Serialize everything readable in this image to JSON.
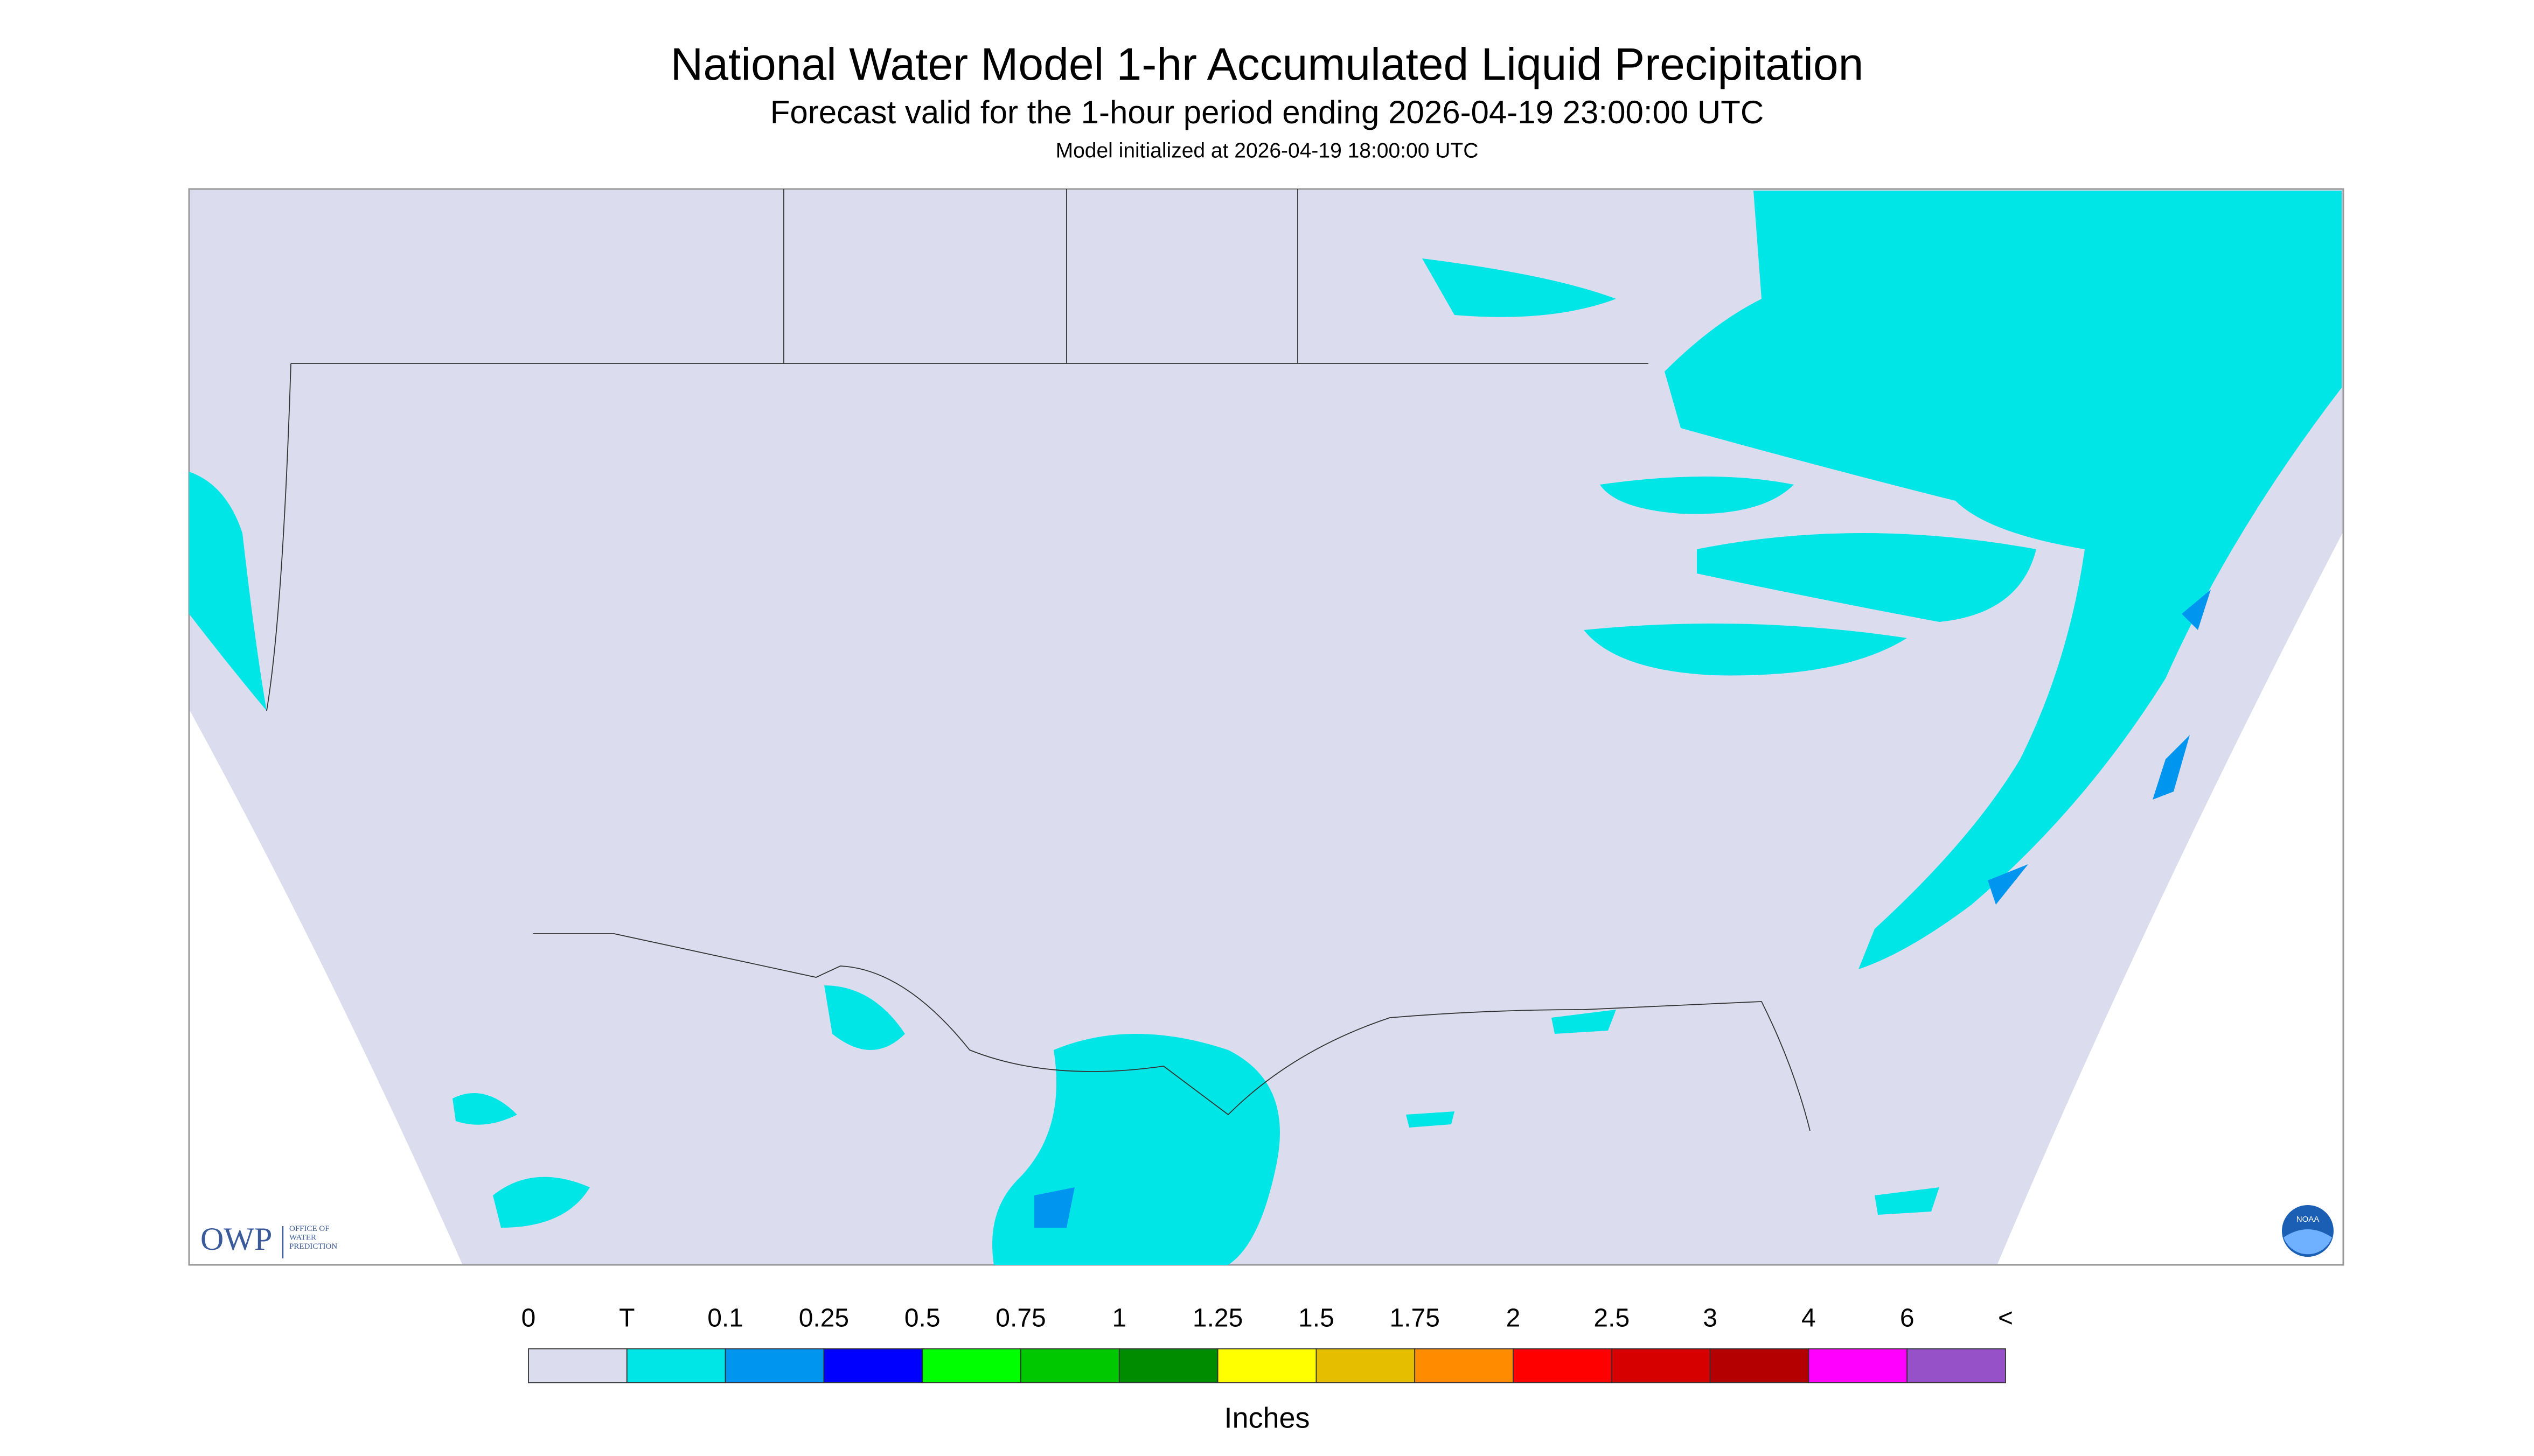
{
  "header": {
    "title": "National Water Model 1-hr Accumulated Liquid Precipitation",
    "subtitle": "Forecast valid for the 1-hour period ending 2026-04-19 23:00:00 UTC",
    "note": "Model initialized at 2026-04-19 18:00:00 UTC"
  },
  "legend": {
    "labels": [
      0,
      "T",
      0.1,
      0.25,
      0.5,
      0.75,
      1,
      1.25,
      1.5,
      1.75,
      2,
      2.5,
      3,
      4,
      6,
      "<"
    ],
    "colors": [
      "#dcdcef",
      "#00e6e6",
      "#0096f0",
      "#0000ff",
      "#00ff00",
      "#00c800",
      "#008c00",
      "#ffff00",
      "#e6be00",
      "#ff8c00",
      "#ff0000",
      "#d70000",
      "#b40000",
      "#ff00ff",
      "#9650c8"
    ],
    "unit": "Inches"
  },
  "logos": {
    "owp": "OWP",
    "owp_text": [
      "OFFICE OF",
      "WATER",
      "PREDICTION"
    ],
    "noaa": "NOAA"
  }
}
